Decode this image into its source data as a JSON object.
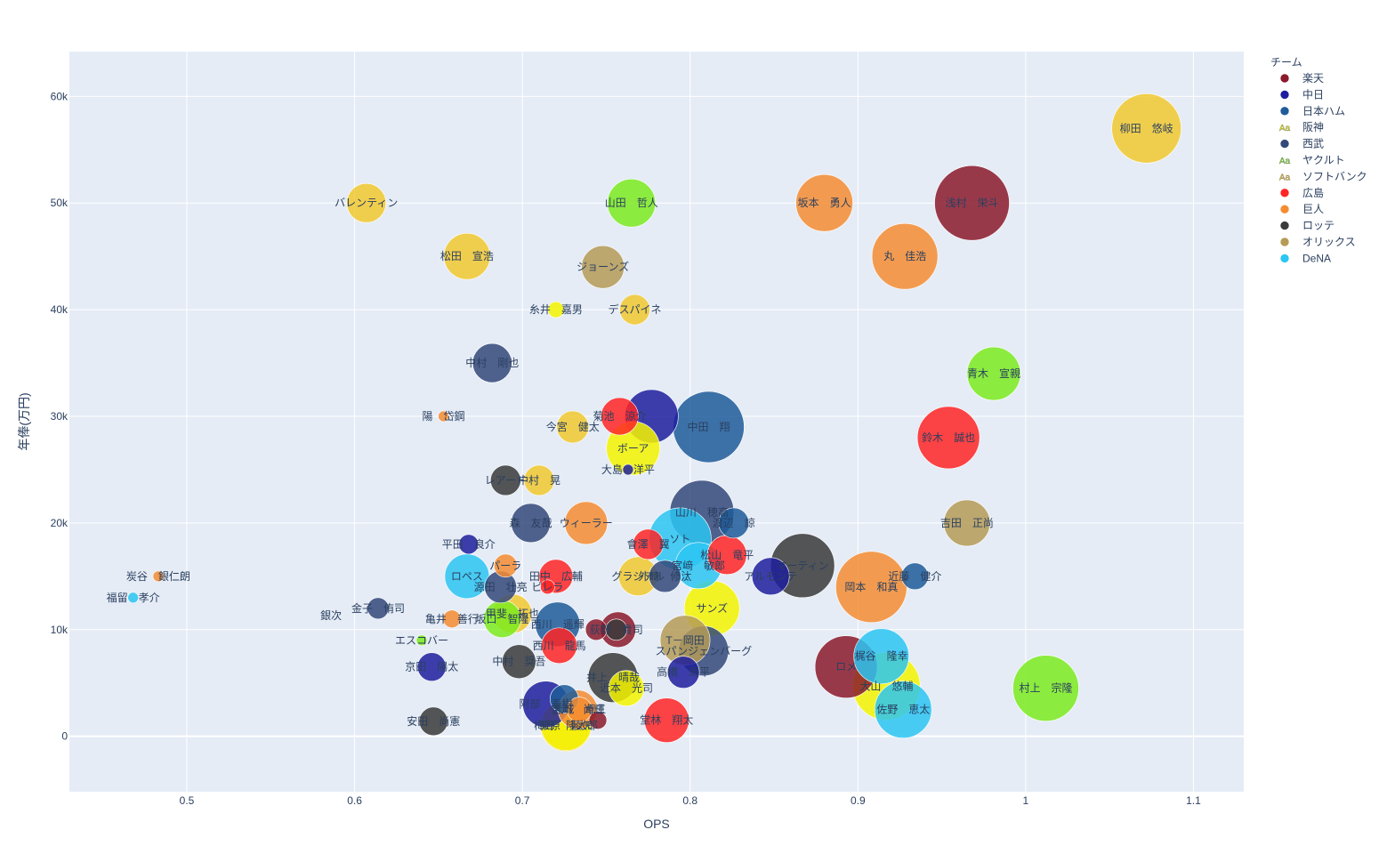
{
  "chart_data": {
    "type": "scatter",
    "xlabel": "OPS",
    "ylabel": "年俸(万円)",
    "xlim": [
      0.43,
      1.13
    ],
    "ylim": [
      -5200,
      64200
    ],
    "xticks": [
      0.5,
      0.6,
      0.7,
      0.8,
      0.9,
      1,
      1.1
    ],
    "xtick_labels": [
      "0.5",
      "0.6",
      "0.7",
      "0.8",
      "0.9",
      "1",
      "1.1"
    ],
    "yticks": [
      0,
      10000,
      20000,
      30000,
      40000,
      50000,
      60000
    ],
    "ytick_labels": [
      "0",
      "10k",
      "20k",
      "30k",
      "40k",
      "50k",
      "60k"
    ],
    "grid": true,
    "legend_title": "チーム",
    "legend_position": "right",
    "series": [
      {
        "name": "楽天",
        "color": "#8B1A2B",
        "points": [
          {
            "label": "浅村　栄斗",
            "x": 0.968,
            "y": 50000,
            "size": 42
          },
          {
            "label": "ロメ",
            "x": 0.893,
            "y": 6500,
            "size": 35
          },
          {
            "label": "",
            "x": 0.744,
            "y": 10000,
            "size": 12
          },
          {
            "label": "",
            "x": 0.757,
            "y": 10000,
            "size": 20
          },
          {
            "label": "",
            "x": 0.745,
            "y": 1500,
            "size": 10
          }
        ]
      },
      {
        "name": "中日",
        "color": "#1E1E9E",
        "points": [
          {
            "label": "",
            "x": 0.777,
            "y": 30000,
            "size": 30
          },
          {
            "label": "平田　良介",
            "x": 0.668,
            "y": 18000,
            "size": 11
          },
          {
            "label": "アルモンテ",
            "x": 0.848,
            "y": 15000,
            "size": 21
          },
          {
            "label": "京田　陽太",
            "x": 0.646,
            "y": 6500,
            "size": 16
          },
          {
            "label": "高橋　周平",
            "x": 0.796,
            "y": 6000,
            "size": 18
          },
          {
            "label": "阿部　寿樹",
            "x": 0.714,
            "y": 3000,
            "size": 26
          },
          {
            "label": "大島　洋平",
            "x": 0.763,
            "y": 25000,
            "size": 6
          }
        ]
      },
      {
        "name": "日本ハム",
        "color": "#1F5C99",
        "points": [
          {
            "label": "中田　翔",
            "x": 0.811,
            "y": 29000,
            "size": 40
          },
          {
            "label": "近藤　健介",
            "x": 0.934,
            "y": 15000,
            "size": 15
          },
          {
            "label": "渡辺　諒",
            "x": 0.826,
            "y": 20000,
            "size": 17
          },
          {
            "label": "西川　遥輝",
            "x": 0.721,
            "y": 10500,
            "size": 25
          },
          {
            "label": "",
            "x": 0.725,
            "y": 3500,
            "size": 16
          }
        ]
      },
      {
        "name": "阪神",
        "color": "#F5F500",
        "points": [
          {
            "label": "ボーア",
            "x": 0.766,
            "y": 27000,
            "size": 30
          },
          {
            "label": "サンズ",
            "x": 0.813,
            "y": 12000,
            "size": 31
          },
          {
            "label": "大山　悠輔",
            "x": 0.917,
            "y": 4700,
            "size": 38
          },
          {
            "label": "糸井　嘉男",
            "x": 0.72,
            "y": 40000,
            "size": 9
          },
          {
            "label": "梅野　隆太郎",
            "x": 0.726,
            "y": 1000,
            "size": 28
          },
          {
            "label": "近本　光司",
            "x": 0.762,
            "y": 4500,
            "size": 20
          }
        ]
      },
      {
        "name": "西武",
        "color": "#34497A",
        "points": [
          {
            "label": "山川　穂高",
            "x": 0.807,
            "y": 21000,
            "size": 36
          },
          {
            "label": "中村　剛也",
            "x": 0.682,
            "y": 35000,
            "size": 22
          },
          {
            "label": "森　友哉",
            "x": 0.705,
            "y": 20000,
            "size": 22
          },
          {
            "label": "外崎　修汰",
            "x": 0.785,
            "y": 15000,
            "size": 18
          },
          {
            "label": "源田　壮亮",
            "x": 0.687,
            "y": 14000,
            "size": 18
          },
          {
            "label": "金子　侑司",
            "x": 0.614,
            "y": 12000,
            "size": 12
          },
          {
            "label": "スパンジェンバーグ",
            "x": 0.808,
            "y": 8000,
            "size": 28
          }
        ]
      },
      {
        "name": "ヤクルト",
        "color": "#7DEB1E",
        "points": [
          {
            "label": "村上　宗隆",
            "x": 1.012,
            "y": 4500,
            "size": 37
          },
          {
            "label": "青木　宣親",
            "x": 0.981,
            "y": 34000,
            "size": 30
          },
          {
            "label": "山田　哲人",
            "x": 0.765,
            "y": 50000,
            "size": 27
          },
          {
            "label": "坂口　智隆",
            "x": 0.688,
            "y": 11000,
            "size": 21
          },
          {
            "label": "エスコバー",
            "x": 0.64,
            "y": 9000,
            "size": 6
          }
        ]
      },
      {
        "name": "ソフトバンク",
        "color": "#F2C92F",
        "points": [
          {
            "label": "柳田　悠岐",
            "x": 1.072,
            "y": 57000,
            "size": 39
          },
          {
            "label": "バレンティン",
            "x": 0.607,
            "y": 50000,
            "size": 22
          },
          {
            "label": "松田　宣浩",
            "x": 0.667,
            "y": 45000,
            "size": 26
          },
          {
            "label": "デスパイネ",
            "x": 0.767,
            "y": 40000,
            "size": 17
          },
          {
            "label": "今宮　健太",
            "x": 0.73,
            "y": 29000,
            "size": 18
          },
          {
            "label": "中村　晃",
            "x": 0.71,
            "y": 24000,
            "size": 17
          },
          {
            "label": "グラシアル",
            "x": 0.769,
            "y": 15000,
            "size": 22
          },
          {
            "label": "栗原　陵矢",
            "x": 0.726,
            "y": 1000,
            "size": 29
          },
          {
            "label": "甲斐　拓也",
            "x": 0.694,
            "y": 11500,
            "size": 22
          }
        ]
      },
      {
        "name": "広島",
        "color": "#FF2525",
        "points": [
          {
            "label": "鈴木　誠也",
            "x": 0.954,
            "y": 28000,
            "size": 35
          },
          {
            "label": "菊池　涼介",
            "x": 0.758,
            "y": 30000,
            "size": 21
          },
          {
            "label": "松山　竜平",
            "x": 0.822,
            "y": 17000,
            "size": 22
          },
          {
            "label": "田中　広輔",
            "x": 0.72,
            "y": 15000,
            "size": 19
          },
          {
            "label": "會澤　翼",
            "x": 0.775,
            "y": 18000,
            "size": 17
          },
          {
            "label": "堂林　翔太",
            "x": 0.786,
            "y": 1500,
            "size": 25
          },
          {
            "label": "西川　龍馬",
            "x": 0.722,
            "y": 8500,
            "size": 20
          },
          {
            "label": "ピレラ",
            "x": 0.715,
            "y": 14000,
            "size": 8
          }
        ]
      },
      {
        "name": "巨人",
        "color": "#F58D33",
        "points": [
          {
            "label": "坂本　勇人",
            "x": 0.88,
            "y": 50000,
            "size": 32
          },
          {
            "label": "丸　佳浩",
            "x": 0.928,
            "y": 45000,
            "size": 37
          },
          {
            "label": "岡本　和真",
            "x": 0.908,
            "y": 14000,
            "size": 40
          },
          {
            "label": "ウィーラー",
            "x": 0.738,
            "y": 20000,
            "size": 24
          },
          {
            "label": "パーラ",
            "x": 0.69,
            "y": 16000,
            "size": 13
          },
          {
            "label": "吉川　尚輝",
            "x": 0.733,
            "y": 2500,
            "size": 22
          },
          {
            "label": "亀井　善行",
            "x": 0.658,
            "y": 11000,
            "size": 10
          },
          {
            "label": "炭谷　銀仁朗",
            "x": 0.483,
            "y": 15000,
            "size": 6
          },
          {
            "label": "陽　岱鋼",
            "x": 0.653,
            "y": 30000,
            "size": 6
          },
          {
            "label": "大城　卓三",
            "x": 0.734,
            "y": 2500,
            "size": 14
          }
        ]
      },
      {
        "name": "ロッテ",
        "color": "#3A3A3A",
        "points": [
          {
            "label": "マーティン",
            "x": 0.867,
            "y": 16000,
            "size": 36
          },
          {
            "label": "井上　晴哉",
            "x": 0.754,
            "y": 5500,
            "size": 28
          },
          {
            "label": "中村　奨吾",
            "x": 0.698,
            "y": 7000,
            "size": 19
          },
          {
            "label": "レアード",
            "x": 0.69,
            "y": 24000,
            "size": 17
          },
          {
            "label": "安田　尚憲",
            "x": 0.647,
            "y": 1400,
            "size": 16
          },
          {
            "label": "荻野　貴司",
            "x": 0.756,
            "y": 10000,
            "size": 12
          }
        ]
      },
      {
        "name": "オリックス",
        "color": "#B59B57",
        "points": [
          {
            "label": "吉田　正尚",
            "x": 0.965,
            "y": 20000,
            "size": 26
          },
          {
            "label": "ジョーンズ",
            "x": 0.748,
            "y": 44000,
            "size": 24
          },
          {
            "label": "T－岡田",
            "x": 0.797,
            "y": 9000,
            "size": 28
          }
        ]
      },
      {
        "name": "DeNA",
        "color": "#2CC6F2",
        "points": [
          {
            "label": "ソト",
            "x": 0.794,
            "y": 18500,
            "size": 35
          },
          {
            "label": "宮﨑　敏郎",
            "x": 0.805,
            "y": 16000,
            "size": 26
          },
          {
            "label": "梶谷　隆幸",
            "x": 0.914,
            "y": 7500,
            "size": 31
          },
          {
            "label": "佐野　恵太",
            "x": 0.927,
            "y": 2500,
            "size": 32
          },
          {
            "label": "ロペス",
            "x": 0.667,
            "y": 15000,
            "size": 25
          },
          {
            "label": "福留　孝介",
            "x": 0.468,
            "y": 13000,
            "size": 6
          },
          {
            "label": "銀次",
            "x": 0.586,
            "y": 11300,
            "size": 0
          }
        ]
      }
    ]
  }
}
